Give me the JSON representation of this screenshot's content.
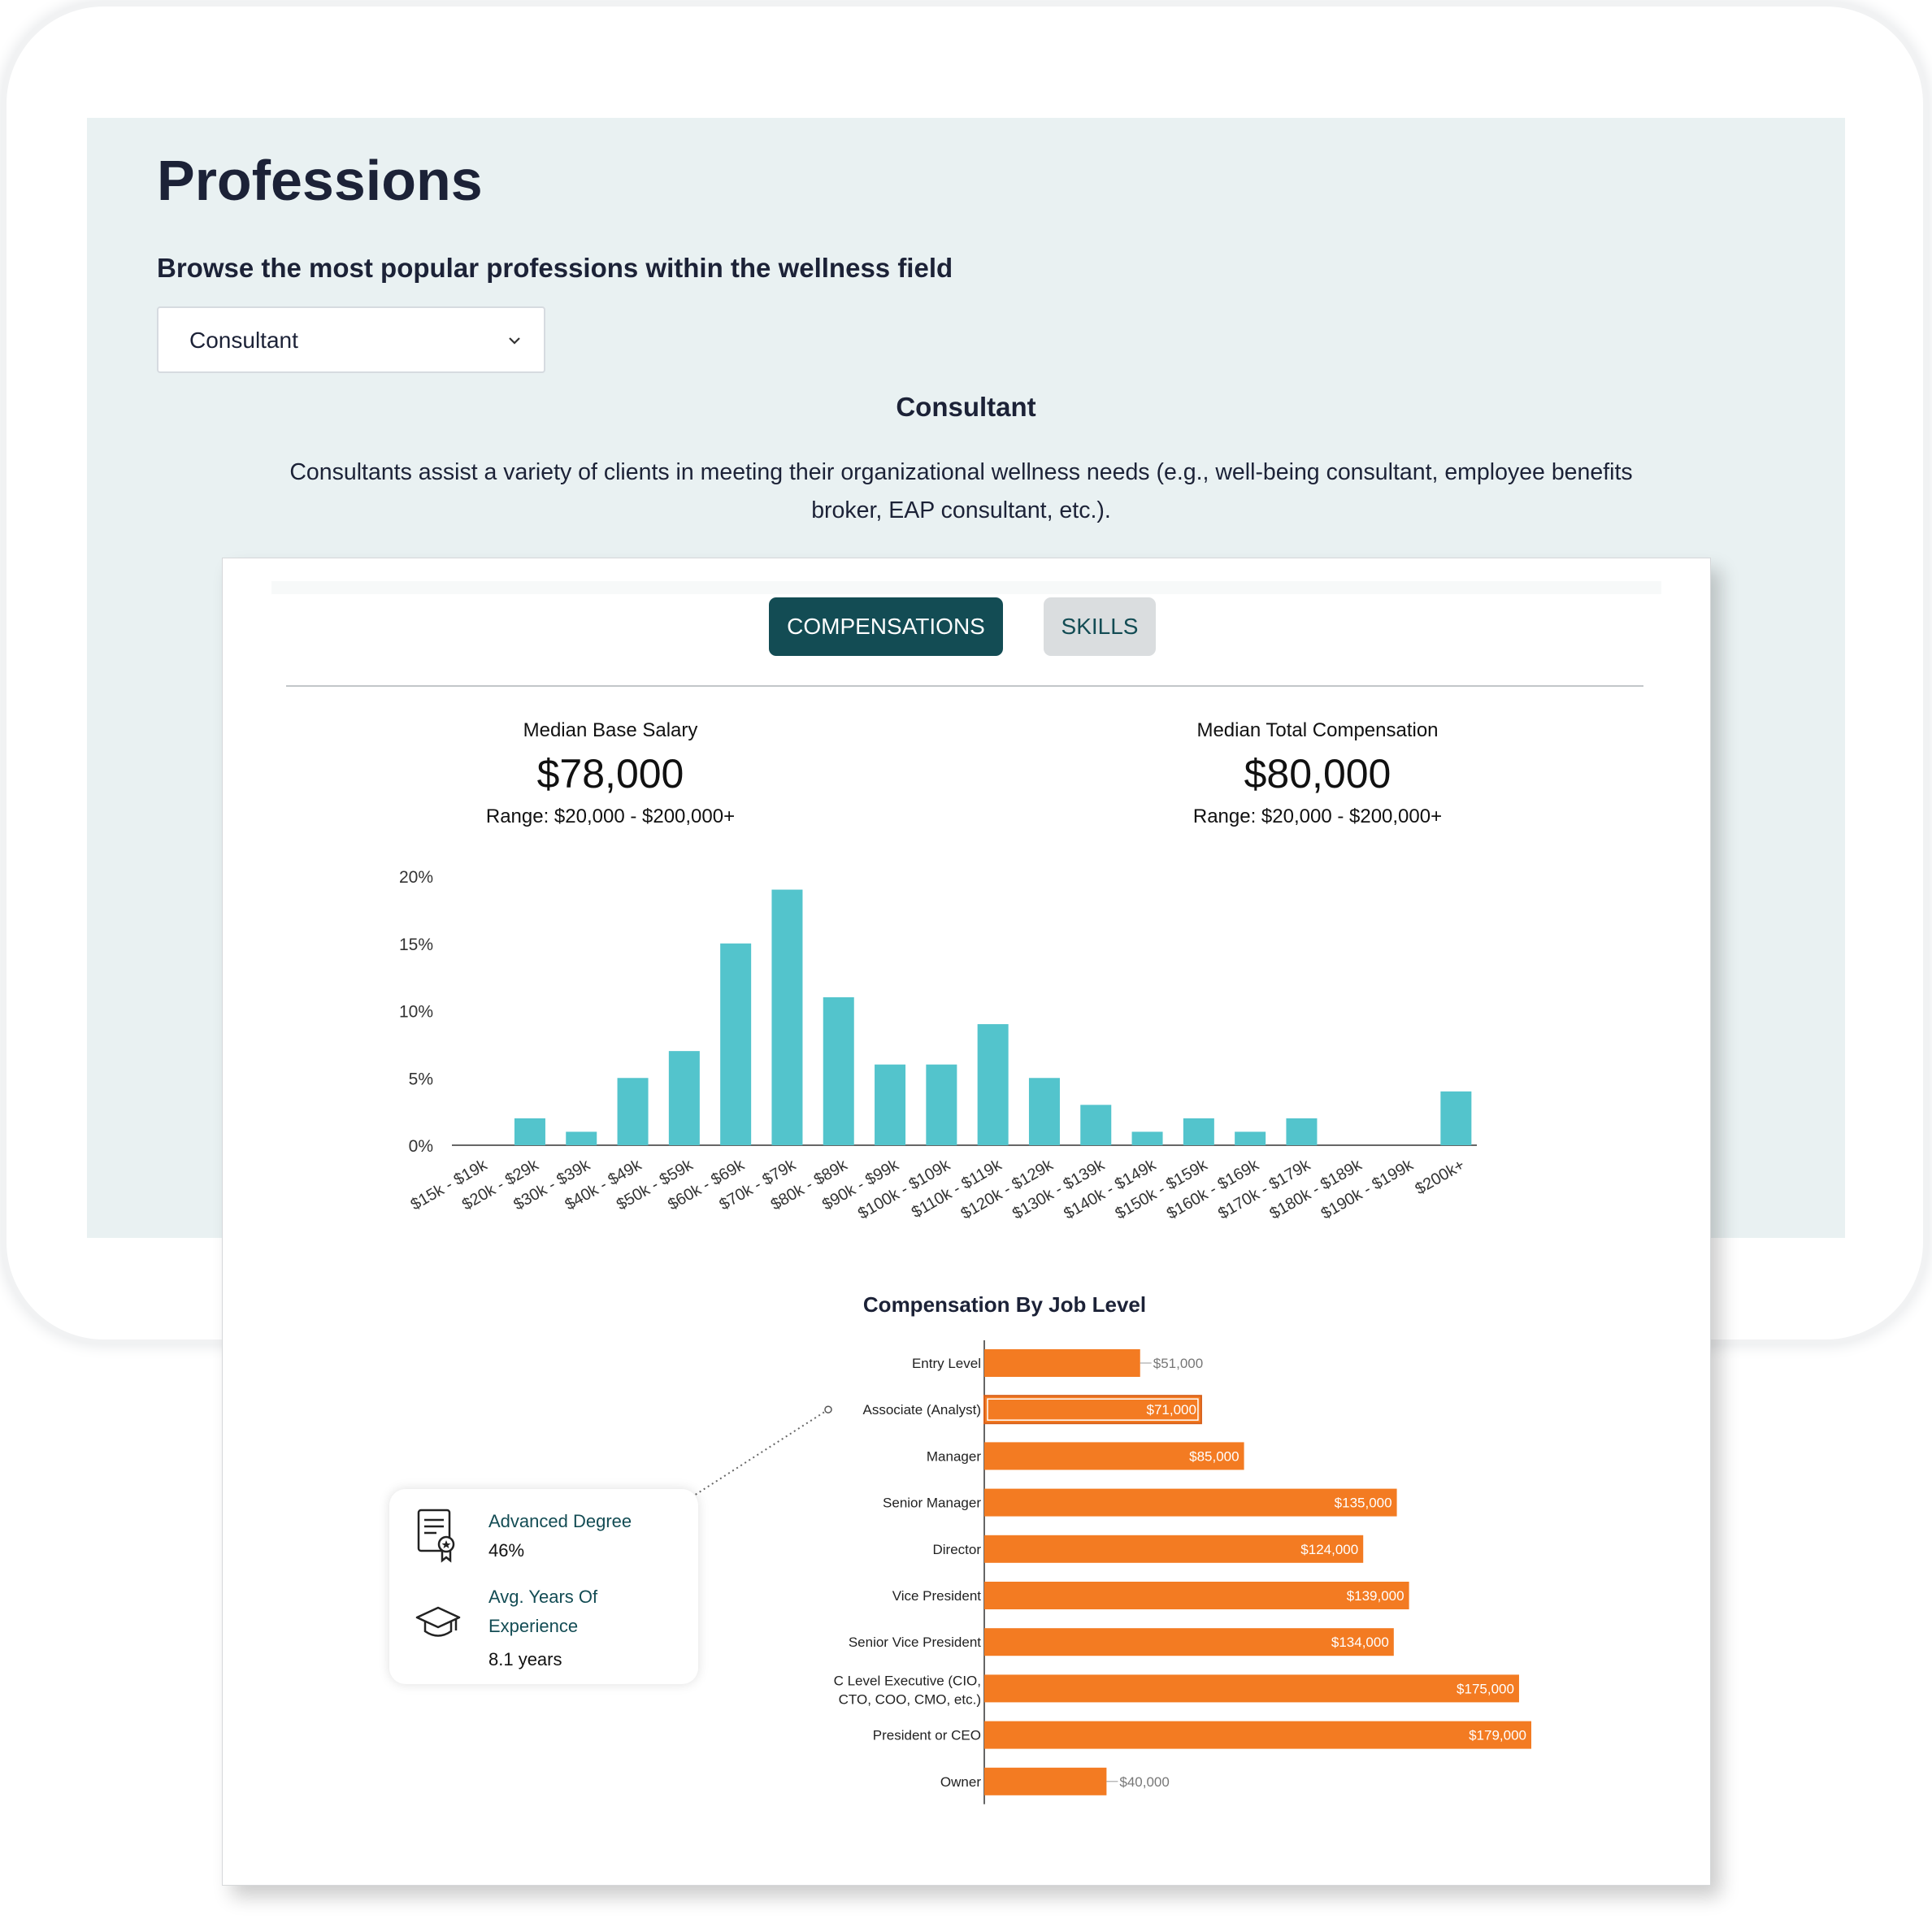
{
  "header": {
    "title": "Professions",
    "subtitle": "Browse the most popular professions within the wellness field"
  },
  "profession_select": {
    "selected": "Consultant"
  },
  "profession": {
    "name": "Consultant",
    "description": "Consultants assist a variety of clients in meeting their organizational wellness needs (e.g., well-being consultant, employee benefits broker, EAP consultant, etc.)."
  },
  "tabs": {
    "compensations": "COMPENSATIONS",
    "skills": "SKILLS"
  },
  "stats": {
    "base": {
      "label": "Median Base Salary",
      "value": "$78,000",
      "range": "Range: $20,000 - $200,000+"
    },
    "total": {
      "label": "Median Total Compensation",
      "value": "$80,000",
      "range": "Range: $20,000 - $200,000+"
    }
  },
  "info": {
    "degree_label": "Advanced Degree",
    "degree_value": "46%",
    "experience_label_line1": "Avg. Years Of",
    "experience_label_line2": "Experience",
    "experience_value": "8.1 years",
    "degree_icon": "certificate-icon",
    "experience_icon": "graduation-cap-icon"
  },
  "colors": {
    "histogram_bar": "#53c4cc",
    "level_bar": "#f37b22",
    "primary": "#134c54"
  },
  "chart_data": [
    {
      "type": "bar",
      "categories": [
        "$15k - $19k",
        "$20k - $29k",
        "$30k - $39k",
        "$40k - $49k",
        "$50k - $59k",
        "$60k - $69k",
        "$70k - $79k",
        "$80k - $89k",
        "$90k - $99k",
        "$100k - $109k",
        "$110k - $119k",
        "$120k - $129k",
        "$130k - $139k",
        "$140k - $149k",
        "$150k - $159k",
        "$160k - $169k",
        "$170k - $179k",
        "$180k - $189k",
        "$190k - $199k",
        "$200k+"
      ],
      "values": [
        0,
        2,
        1,
        5,
        7,
        15,
        19,
        11,
        6,
        6,
        9,
        5,
        3,
        1,
        2,
        1,
        2,
        0,
        0,
        4
      ],
      "ylim": [
        0,
        20
      ],
      "yticks": [
        "0%",
        "5%",
        "10%",
        "15%",
        "20%"
      ],
      "grid": false
    },
    {
      "type": "bar",
      "orientation": "horizontal",
      "title": "Compensation By Job Level",
      "categories": [
        "Entry Level",
        "Associate (Analyst)",
        "Manager",
        "Senior Manager",
        "Director",
        "Vice President",
        "Senior Vice President",
        "C Level Executive (CIO, CTO, COO, CMO, etc.)",
        "President or CEO",
        "Owner"
      ],
      "values": [
        51000,
        71000,
        85000,
        135000,
        124000,
        139000,
        134000,
        175000,
        179000,
        40000
      ],
      "value_labels": [
        "$51,000",
        "$71,000",
        "$85,000",
        "$135,000",
        "$124,000",
        "$139,000",
        "$134,000",
        "$175,000",
        "$179,000",
        "$40,000"
      ],
      "highlighted": "Associate (Analyst)"
    }
  ]
}
